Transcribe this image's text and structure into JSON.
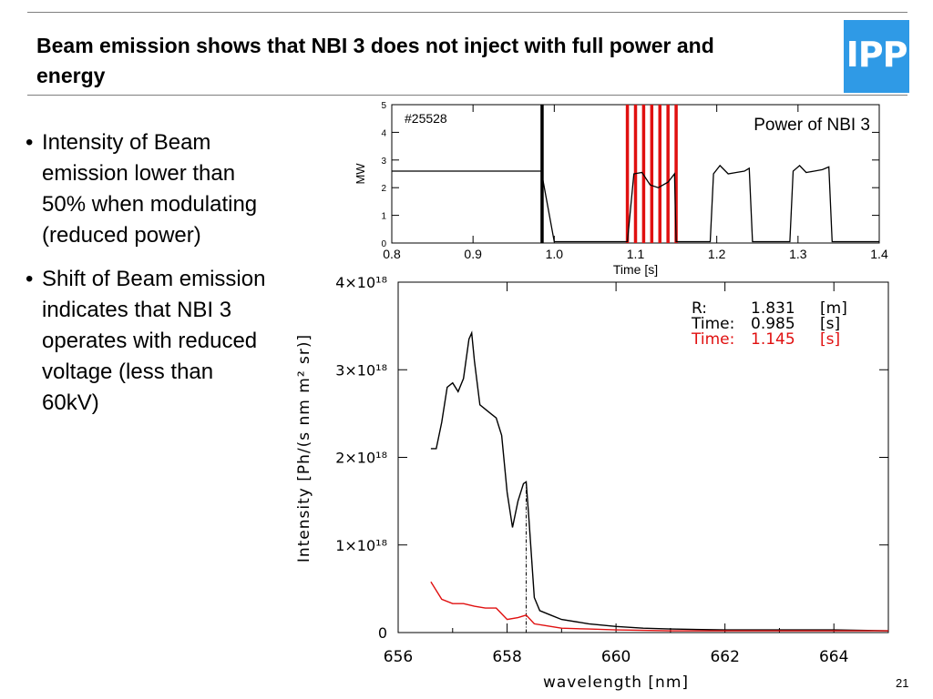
{
  "slide": {
    "title": "Beam emission shows that NBI 3 does not inject with full power and energy",
    "logo_text": "IPP",
    "page_number": "21",
    "bullets": [
      "Intensity of Beam emission lower than 50% when modulating (reduced power)",
      "Shift of Beam emission indicates that NBI 3 operates with reduced voltage (less than 60kV)"
    ],
    "colors": {
      "accent": "#2f9ae6",
      "red": "#e01010",
      "black": "#000000"
    }
  },
  "chart_data": [
    {
      "type": "line",
      "title": "Power of NBI 3",
      "annotation": "#25528",
      "xlabel": "Time [s]",
      "ylabel": "MW",
      "xlim": [
        0.8,
        1.4
      ],
      "ylim": [
        0,
        5
      ],
      "xticks": [
        "0.8",
        "0.9",
        "1.0",
        "1.1",
        "1.2",
        "1.3",
        "1.4"
      ],
      "yticks": [
        "0",
        "1",
        "2",
        "3",
        "4",
        "5"
      ],
      "series": [
        {
          "color": "#000000",
          "x": [
            0.8,
            0.98,
            0.984,
            1.0,
            1.09,
            1.098,
            1.108,
            1.118,
            1.128,
            1.14,
            1.148,
            1.15,
            1.192,
            1.196,
            1.204,
            1.214,
            1.224,
            1.234,
            1.24,
            1.244,
            1.29,
            1.294,
            1.302,
            1.31,
            1.32,
            1.33,
            1.338,
            1.342,
            1.4
          ],
          "y": [
            2.6,
            2.6,
            2.6,
            0.05,
            0.05,
            2.5,
            2.55,
            2.1,
            2.0,
            2.2,
            2.5,
            0.05,
            0.05,
            2.5,
            2.8,
            2.5,
            2.55,
            2.6,
            2.7,
            0.05,
            0.05,
            2.6,
            2.8,
            2.55,
            2.6,
            2.65,
            2.75,
            0.05,
            0.05
          ]
        }
      ],
      "markers": [
        {
          "color": "#000000",
          "x": [
            0.985
          ]
        },
        {
          "color": "#e01010",
          "x": [
            1.09,
            1.1,
            1.11,
            1.12,
            1.13,
            1.14,
            1.15
          ]
        }
      ]
    },
    {
      "type": "line",
      "xlabel": "wavelength [nm]",
      "ylabel": "Intensity [Ph/(s nm m² sr)]",
      "xlim": [
        656,
        665
      ],
      "ylim": [
        0,
        4e+18
      ],
      "xticks": [
        "656",
        "658",
        "660",
        "662",
        "664"
      ],
      "yticks": [
        "0",
        "1×10¹⁸",
        "2×10¹⁸",
        "3×10¹⁸",
        "4×10¹⁸"
      ],
      "legend": [
        {
          "label": "R:",
          "value": "1.831",
          "unit": "[m]",
          "color": "#000000"
        },
        {
          "label": "Time:",
          "value": "0.985",
          "unit": "[s]",
          "color": "#000000"
        },
        {
          "label": "Time:",
          "value": "1.145",
          "unit": "[s]",
          "color": "#e01010"
        }
      ],
      "reference_line_x": 658.35,
      "series": [
        {
          "color": "#000000",
          "x": [
            656.6,
            656.7,
            656.8,
            656.9,
            657.0,
            657.1,
            657.2,
            657.3,
            657.35,
            657.4,
            657.5,
            657.6,
            657.7,
            657.8,
            657.9,
            658.0,
            658.1,
            658.2,
            658.3,
            658.35,
            658.4,
            658.5,
            658.6,
            658.8,
            659.0,
            659.5,
            660.0,
            660.5,
            661.0,
            662.0,
            663.0,
            664.0,
            665.0
          ],
          "y": [
            2.1e+18,
            2.1e+18,
            2.4e+18,
            2.8e+18,
            2.85e+18,
            2.75e+18,
            2.9e+18,
            3.35e+18,
            3.42e+18,
            3.1e+18,
            2.6e+18,
            2.55e+18,
            2.5e+18,
            2.45e+18,
            2.25e+18,
            1.6e+18,
            1.2e+18,
            1.5e+18,
            1.7e+18,
            1.72e+18,
            1.3e+18,
            4e+17,
            2.5e+17,
            2e+17,
            1.5e+17,
            1e+17,
            7e+16,
            5e+16,
            4e+16,
            3e+16,
            3e+16,
            3e+16,
            2e+16
          ]
        },
        {
          "color": "#e01010",
          "x": [
            656.6,
            656.7,
            656.8,
            657.0,
            657.2,
            657.4,
            657.6,
            657.8,
            658.0,
            658.2,
            658.35,
            658.5,
            658.7,
            659.0,
            659.5,
            660.0,
            661.0,
            662.0,
            663.0,
            664.0,
            665.0
          ],
          "y": [
            5.8e+17,
            4.8e+17,
            3.8e+17,
            3.3e+17,
            3.3e+17,
            3e+17,
            2.8e+17,
            2.8e+17,
            1.5e+17,
            1.7e+17,
            2e+17,
            1e+17,
            8e+16,
            5e+16,
            4e+16,
            3e+16,
            2e+16,
            2e+16,
            2e+16,
            2e+16,
            2e+16
          ]
        }
      ]
    }
  ]
}
